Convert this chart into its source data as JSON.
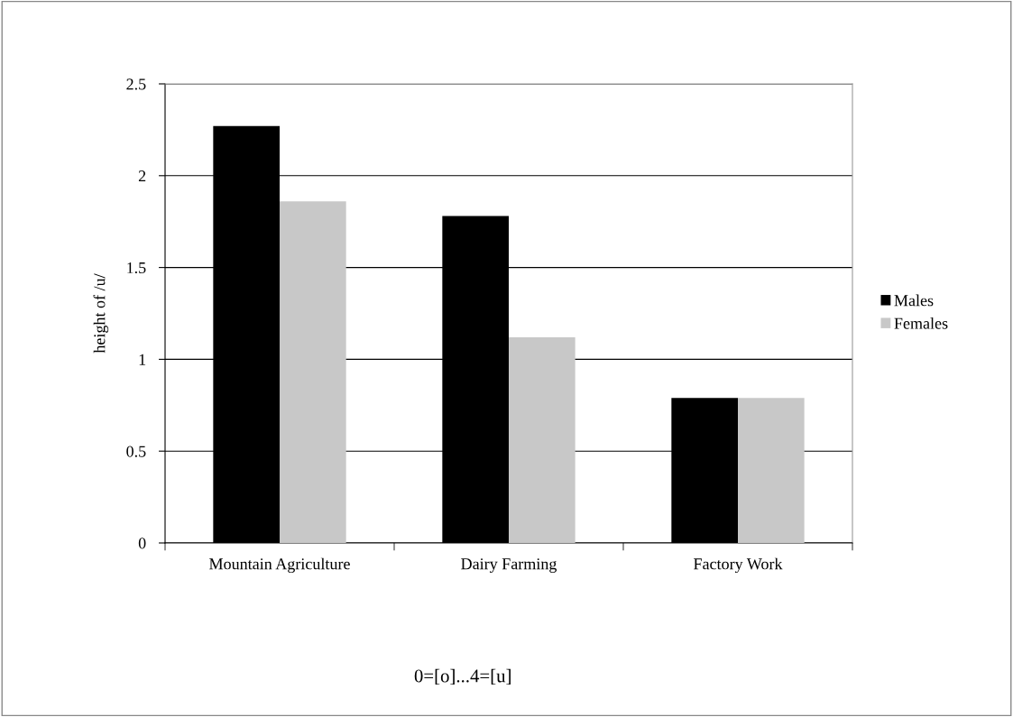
{
  "chart_data": {
    "type": "bar",
    "ylabel": "height of /u/",
    "categories": [
      "Mountain Agriculture",
      "Dairy Farming",
      "Factory Work"
    ],
    "series": [
      {
        "name": "Males",
        "color": "#000000",
        "values": [
          2.27,
          1.78,
          0.79
        ]
      },
      {
        "name": "Females",
        "color": "#c8c8c8",
        "values": [
          1.86,
          1.12,
          0.79
        ]
      }
    ],
    "ylim": [
      0,
      2.5
    ],
    "yticks": [
      0,
      0.5,
      1,
      1.5,
      2,
      2.5
    ],
    "grid": "y",
    "legend": "right",
    "annotations": [
      "0=[o]...4=[u]"
    ]
  }
}
